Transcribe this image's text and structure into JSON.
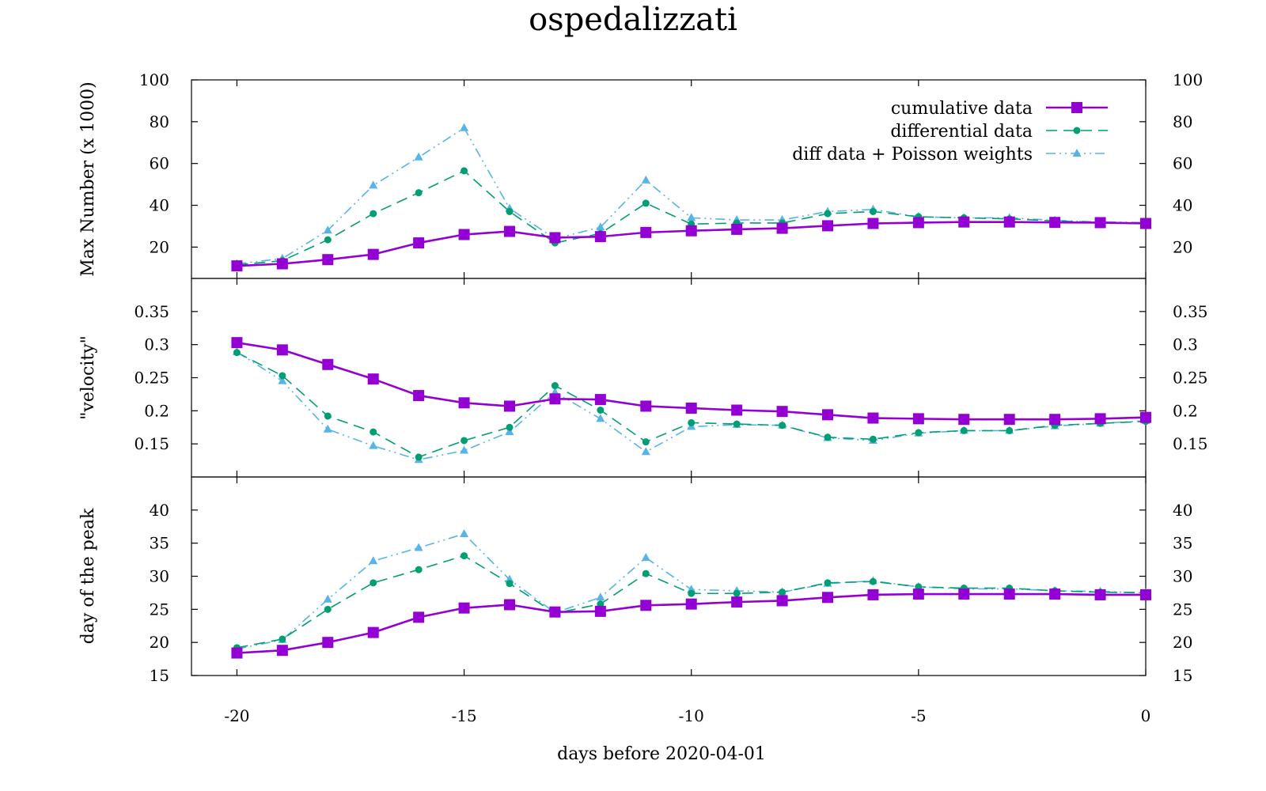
{
  "title": "ospedalizzati",
  "colors": {
    "cumulative": "#9400d3",
    "differential": "#009e73",
    "poisson": "#56b4e9"
  },
  "chart_data": {
    "type": "line",
    "title": "ospedalizzati",
    "xlabel": "days before 2020-04-01",
    "xlim": [
      -21,
      0
    ],
    "x_ticks": [
      -20,
      -15,
      -10,
      -5,
      0
    ],
    "x": [
      -20,
      -19,
      -18,
      -17,
      -16,
      -15,
      -14,
      -13,
      -12,
      -11,
      -10,
      -9,
      -8,
      -7,
      -6,
      -5,
      -4,
      -3,
      -2,
      -1,
      0
    ],
    "legend": [
      "cumulative data",
      "differential data",
      "diff data + Poisson weights"
    ],
    "legend_position": "top-right",
    "grid": false,
    "panels": [
      {
        "ylabel": "Max Number (x 1000)",
        "ylim": [
          5,
          100
        ],
        "y_ticks": [
          20,
          40,
          60,
          80,
          100
        ],
        "series": [
          {
            "name": "cumulative data",
            "values": [
              11,
              12,
              14,
              16.5,
              22,
              26,
              27.5,
              24.5,
              25,
              27,
              27.8,
              28.5,
              29,
              30.2,
              31.3,
              31.7,
              32,
              32,
              31.8,
              31.7,
              31.3
            ]
          },
          {
            "name": "differential data",
            "values": [
              11.5,
              13.5,
              23.5,
              36,
              46,
              56.5,
              37,
              22,
              26.5,
              41,
              31,
              31.5,
              31.5,
              36,
              37,
              34.5,
              34,
              33.5,
              32.5,
              31.8,
              31.5
            ]
          },
          {
            "name": "diff data + Poisson weights",
            "values": [
              12,
              14.5,
              28,
              49.5,
              63,
              77,
              38.5,
              24,
              29.5,
              52,
              34,
              33,
              33,
              37,
              38,
              34.5,
              34,
              34,
              32.8,
              32,
              31.8
            ]
          }
        ]
      },
      {
        "ylabel": "\"velocity\"",
        "ylim": [
          0.1,
          0.4
        ],
        "y_ticks": [
          0.15,
          0.2,
          0.25,
          0.3,
          0.35
        ],
        "series": [
          {
            "name": "cumulative data",
            "values": [
              0.303,
              0.292,
              0.27,
              0.248,
              0.223,
              0.212,
              0.207,
              0.218,
              0.217,
              0.207,
              0.204,
              0.201,
              0.199,
              0.194,
              0.189,
              0.188,
              0.187,
              0.187,
              0.187,
              0.188,
              0.19
            ]
          },
          {
            "name": "differential data",
            "values": [
              0.288,
              0.253,
              0.192,
              0.168,
              0.13,
              0.155,
              0.175,
              0.238,
              0.201,
              0.153,
              0.182,
              0.18,
              0.178,
              0.16,
              0.157,
              0.167,
              0.17,
              0.17,
              0.178,
              0.181,
              0.184
            ]
          },
          {
            "name": "diff data + Poisson weights",
            "values": [
              0.289,
              0.245,
              0.172,
              0.147,
              0.126,
              0.14,
              0.168,
              0.228,
              0.188,
              0.138,
              0.176,
              0.179,
              0.178,
              0.159,
              0.155,
              0.166,
              0.17,
              0.17,
              0.177,
              0.181,
              0.185
            ]
          }
        ]
      },
      {
        "ylabel": "day of the peak",
        "ylim": [
          15,
          45
        ],
        "y_ticks": [
          15,
          20,
          25,
          30,
          35,
          40
        ],
        "series": [
          {
            "name": "cumulative data",
            "values": [
              18.4,
              18.8,
              20,
              21.5,
              23.8,
              25.2,
              25.7,
              24.6,
              24.7,
              25.6,
              25.8,
              26.1,
              26.3,
              26.8,
              27.2,
              27.3,
              27.3,
              27.3,
              27.3,
              27.2,
              27.2
            ]
          },
          {
            "name": "differential data",
            "values": [
              19.2,
              20.5,
              25,
              29,
              31,
              33.1,
              28.9,
              24.4,
              25.8,
              30.4,
              27.4,
              27.4,
              27.6,
              29,
              29.2,
              28.4,
              28.2,
              28.2,
              27.8,
              27.6,
              27.5
            ]
          },
          {
            "name": "diff data + Poisson weights",
            "values": [
              19,
              20.4,
              26.5,
              32.3,
              34.3,
              36.4,
              29.5,
              24.5,
              26.8,
              32.8,
              28,
              27.8,
              27.6,
              28.9,
              29.3,
              28.4,
              28.1,
              28.1,
              27.8,
              27.7,
              27.5
            ]
          }
        ]
      }
    ]
  }
}
